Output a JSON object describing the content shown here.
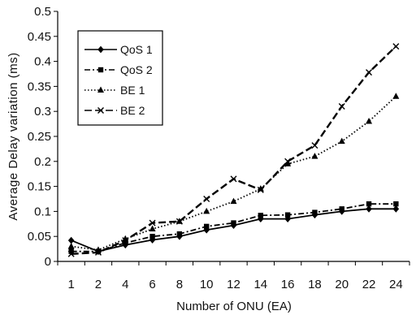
{
  "chart_data": {
    "type": "line",
    "title": "",
    "xlabel": "Number of ONU (EA)",
    "ylabel": "Average Delay variation (ms)",
    "categories": [
      "1",
      "2",
      "4",
      "6",
      "8",
      "10",
      "12",
      "14",
      "16",
      "18",
      "20",
      "22",
      "24"
    ],
    "y_ticks": [
      "0",
      "0.05",
      "0.1",
      "0.15",
      "0.2",
      "0.25",
      "0.3",
      "0.35",
      "0.4",
      "0.45",
      "0.5"
    ],
    "ylim": [
      0,
      0.5
    ],
    "grid": false,
    "legend_position": "top-left",
    "series": [
      {
        "name": "QoS 1",
        "line_style": "solid",
        "marker": "diamond",
        "values": [
          0.042,
          0.02,
          0.033,
          0.043,
          0.05,
          0.063,
          0.072,
          0.085,
          0.085,
          0.093,
          0.1,
          0.105,
          0.105
        ]
      },
      {
        "name": "QoS 2",
        "line_style": "dash-dot",
        "marker": "square",
        "values": [
          0.02,
          0.02,
          0.037,
          0.05,
          0.055,
          0.07,
          0.077,
          0.092,
          0.093,
          0.098,
          0.105,
          0.115,
          0.115
        ]
      },
      {
        "name": "BE 1",
        "line_style": "dotted",
        "marker": "triangle",
        "values": [
          0.03,
          0.023,
          0.045,
          0.065,
          0.08,
          0.1,
          0.12,
          0.145,
          0.195,
          0.21,
          0.24,
          0.28,
          0.33
        ]
      },
      {
        "name": "BE 2",
        "line_style": "dashed",
        "marker": "x",
        "values": [
          0.015,
          0.018,
          0.042,
          0.077,
          0.08,
          0.125,
          0.165,
          0.143,
          0.2,
          0.232,
          0.31,
          0.378,
          0.43
        ]
      }
    ]
  }
}
